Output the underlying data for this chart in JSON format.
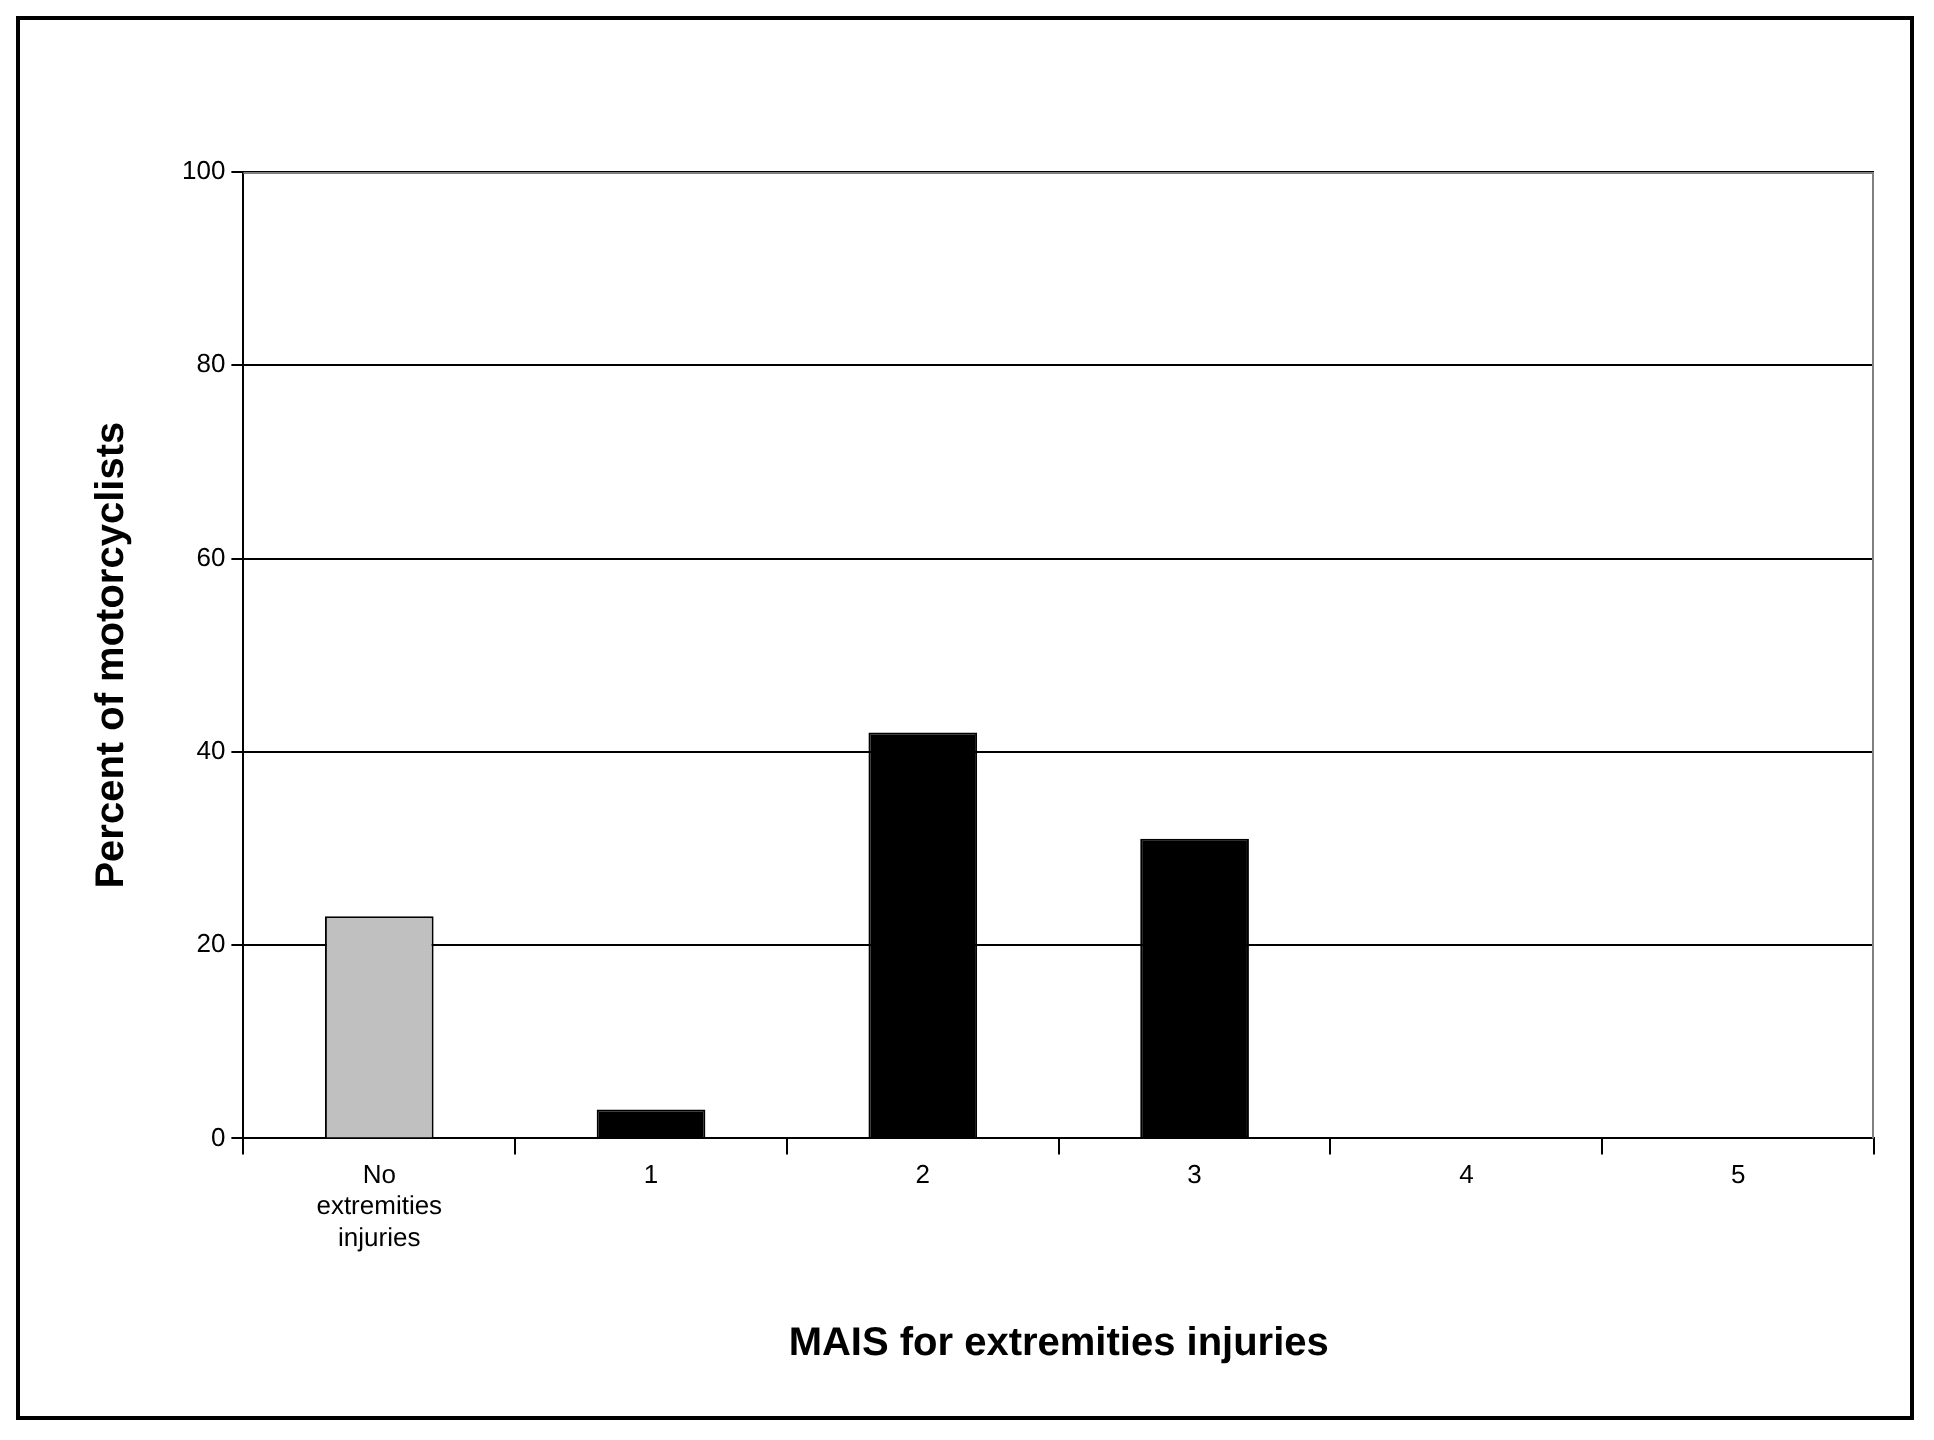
{
  "chart_data": {
    "type": "bar",
    "xlabel": "MAIS for extremities injuries",
    "ylabel": "Percent of motorcyclists",
    "categories": [
      "No extremities injuries",
      "1",
      "2",
      "3",
      "4",
      "5"
    ],
    "values": [
      23,
      3,
      42,
      31,
      0,
      0
    ],
    "colors": [
      "#c0c0c0",
      "#000000",
      "#000000",
      "#000000",
      "#000000",
      "#000000"
    ],
    "ylim": [
      0,
      100
    ],
    "yticks": [
      0,
      20,
      40,
      60,
      80,
      100
    ],
    "grid": "y",
    "legend": false
  }
}
